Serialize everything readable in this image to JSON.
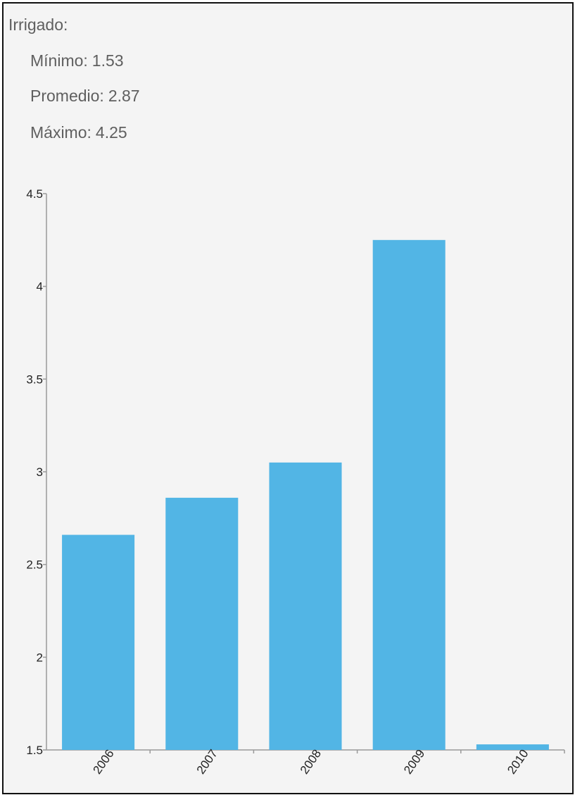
{
  "header": {
    "title": "Irrigado:",
    "stats": [
      {
        "label": "Mínimo:",
        "value": "1.53"
      },
      {
        "label": "Promedio:",
        "value": "2.87"
      },
      {
        "label": "Máximo:",
        "value": "4.25"
      }
    ]
  },
  "colors": {
    "bar": "#52b5e5",
    "axis": "#9a9a9a",
    "background": "#f4f4f4"
  },
  "chart_data": {
    "type": "bar",
    "categories": [
      "2006",
      "2007",
      "2008",
      "2009",
      "2010"
    ],
    "values": [
      2.66,
      2.86,
      3.05,
      4.25,
      1.53
    ],
    "y_ticks": [
      "1.5",
      "2",
      "2.5",
      "3",
      "3.5",
      "4",
      "4.5"
    ],
    "ylim": [
      1.5,
      4.5
    ],
    "grid": false,
    "legend": "none",
    "title": "",
    "xlabel": "",
    "ylabel": ""
  }
}
